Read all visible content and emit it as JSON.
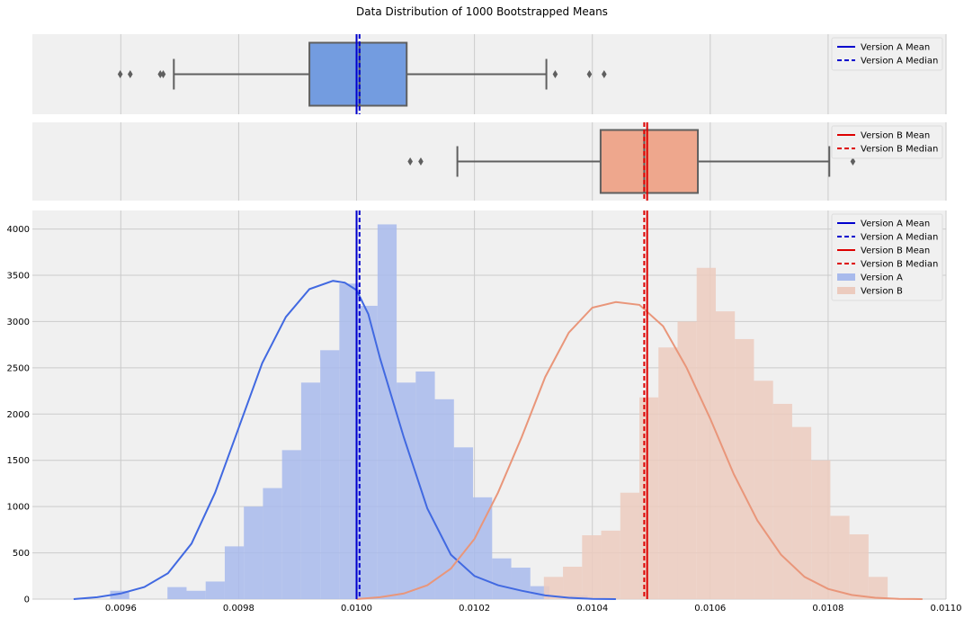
{
  "title": "Data Distribution of 1000 Bootstrapped Means",
  "colors": {
    "background": "#f0f0f0",
    "grid": "#cbcbcb",
    "version_a": "#4169e1",
    "version_a_box": "#739ce0",
    "version_a_bar": "#a8baec",
    "version_a_line": "#0000cd",
    "version_b": "#e9967a",
    "version_b_box": "#eea78d",
    "version_b_bar": "#eccbbe",
    "version_b_line": "#dd0000",
    "whisker": "#5f5f5f"
  },
  "chart_data": [
    {
      "type": "box",
      "name": "Version A",
      "xlim": [
        0.00945,
        0.011
      ],
      "whisker_low": 0.00969,
      "q1": 0.00992,
      "median": 0.010005,
      "mean": 0.01,
      "q3": 0.010085,
      "whisker_high": 0.010322,
      "outliers": [
        0.009599,
        0.009616,
        0.009667,
        0.009672,
        0.010337,
        0.010395,
        0.01042
      ],
      "legend": [
        "Version A Mean",
        "Version A Median"
      ]
    },
    {
      "type": "box",
      "name": "Version B",
      "xlim": [
        0.00945,
        0.011
      ],
      "whisker_low": 0.010171,
      "q1": 0.010414,
      "median": 0.010488,
      "mean": 0.010493,
      "q3": 0.010579,
      "whisker_high": 0.010802,
      "outliers": [
        0.010091,
        0.010109,
        0.010842
      ],
      "legend": [
        "Version B Mean",
        "Version B Median"
      ]
    },
    {
      "type": "histogram",
      "xlim": [
        0.00945,
        0.011
      ],
      "ylim": [
        0,
        4200
      ],
      "xticks": [
        "0.0096",
        "0.0098",
        "0.0100",
        "0.0102",
        "0.0104",
        "0.0106",
        "0.0108",
        "0.0110"
      ],
      "xtick_values": [
        0.0096,
        0.0098,
        0.01,
        0.0102,
        0.0104,
        0.0106,
        0.0108,
        0.011
      ],
      "yticks": [
        "0",
        "500",
        "1000",
        "1500",
        "2000",
        "2500",
        "3000",
        "3500",
        "4000"
      ],
      "ytick_values": [
        0,
        500,
        1000,
        1500,
        2000,
        2500,
        3000,
        3500,
        4000
      ],
      "legend": [
        "Version A Mean",
        "Version A Median",
        "Version B Mean",
        "Version B Median",
        "Version A",
        "Version B"
      ],
      "series": [
        {
          "name": "Version A",
          "bin_start": 0.009582,
          "bin_width": 3.24e-05,
          "values": [
            90,
            0,
            0,
            130,
            90,
            190,
            570,
            1000,
            1200,
            1610,
            2340,
            2690,
            3410,
            3170,
            4050,
            2340,
            2460,
            2160,
            1640,
            1100,
            440,
            340,
            140,
            0,
            40
          ],
          "kde": [
            [
              0.00952,
              0
            ],
            [
              0.00956,
              20
            ],
            [
              0.0096,
              60
            ],
            [
              0.00964,
              130
            ],
            [
              0.00968,
              280
            ],
            [
              0.00972,
              600
            ],
            [
              0.00976,
              1150
            ],
            [
              0.0098,
              1850
            ],
            [
              0.00984,
              2550
            ],
            [
              0.00988,
              3050
            ],
            [
              0.00992,
              3350
            ],
            [
              0.00996,
              3440
            ],
            [
              0.00998,
              3420
            ],
            [
              0.01,
              3340
            ],
            [
              0.01002,
              3080
            ],
            [
              0.01004,
              2600
            ],
            [
              0.01008,
              1750
            ],
            [
              0.01012,
              980
            ],
            [
              0.01016,
              480
            ],
            [
              0.0102,
              250
            ],
            [
              0.01024,
              150
            ],
            [
              0.01028,
              90
            ],
            [
              0.01032,
              40
            ],
            [
              0.01036,
              15
            ],
            [
              0.0104,
              3
            ],
            [
              0.01044,
              0
            ]
          ],
          "mean": 0.01,
          "median": 0.010005
        },
        {
          "name": "Version B",
          "bin_start": 0.010091,
          "bin_width": 3.24e-05,
          "values": [
            0,
            0,
            0,
            0,
            0,
            0,
            0,
            240,
            350,
            690,
            740,
            1150,
            2180,
            2720,
            3000,
            3580,
            3110,
            2810,
            2360,
            2110,
            1860,
            1500,
            900,
            700,
            240
          ],
          "kde": [
            [
              0.01,
              0
            ],
            [
              0.01004,
              20
            ],
            [
              0.01008,
              60
            ],
            [
              0.01012,
              150
            ],
            [
              0.01016,
              330
            ],
            [
              0.0102,
              650
            ],
            [
              0.01024,
              1150
            ],
            [
              0.01028,
              1750
            ],
            [
              0.01032,
              2400
            ],
            [
              0.01036,
              2880
            ],
            [
              0.0104,
              3150
            ],
            [
              0.01044,
              3210
            ],
            [
              0.01048,
              3180
            ],
            [
              0.01052,
              2950
            ],
            [
              0.01056,
              2500
            ],
            [
              0.0106,
              1950
            ],
            [
              0.01064,
              1350
            ],
            [
              0.01068,
              850
            ],
            [
              0.01072,
              480
            ],
            [
              0.01076,
              240
            ],
            [
              0.0108,
              110
            ],
            [
              0.01084,
              45
            ],
            [
              0.01088,
              15
            ],
            [
              0.01092,
              3
            ],
            [
              0.01096,
              0
            ]
          ],
          "mean": 0.010493,
          "median": 0.010488
        }
      ]
    }
  ]
}
